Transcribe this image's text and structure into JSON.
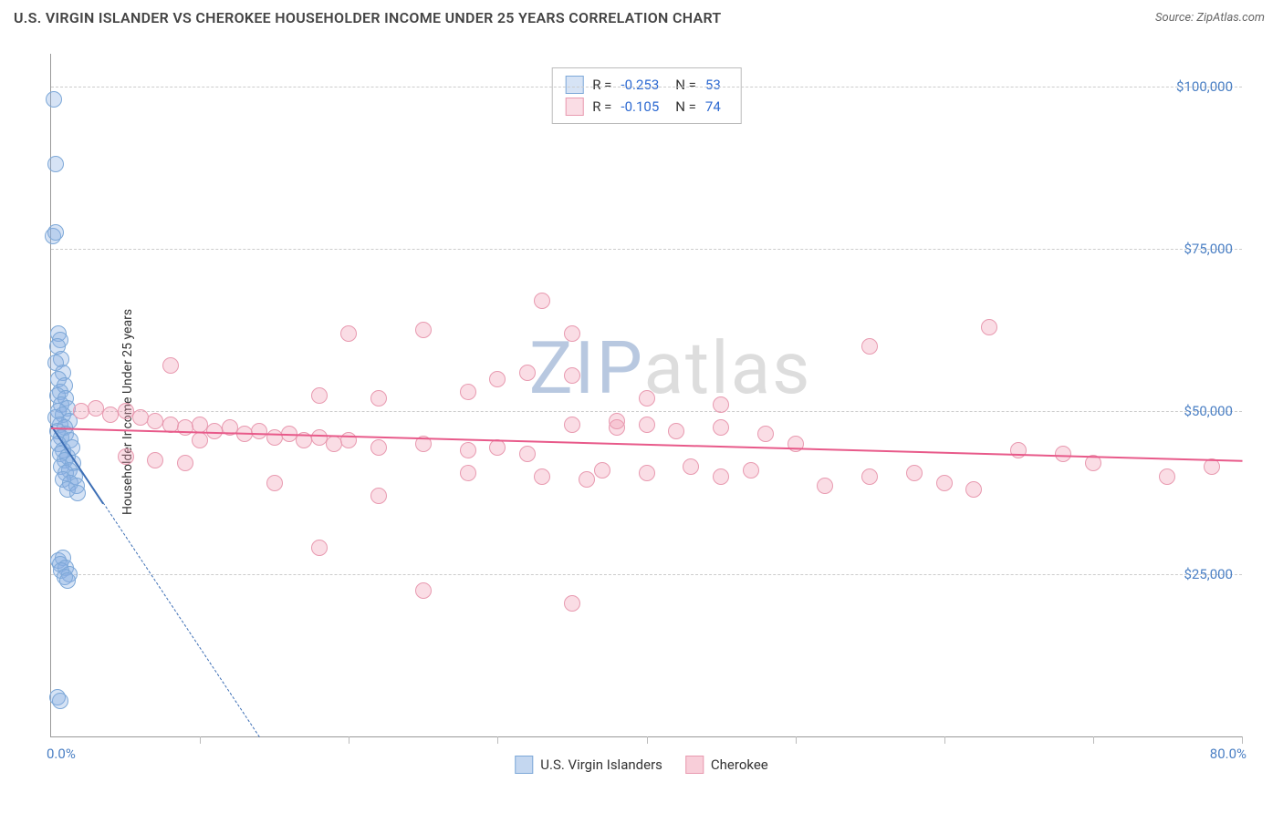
{
  "title": "U.S. VIRGIN ISLANDER VS CHEROKEE HOUSEHOLDER INCOME UNDER 25 YEARS CORRELATION CHART",
  "source": "Source: ZipAtlas.com",
  "watermark_zip": "ZIP",
  "watermark_atlas": "atlas",
  "watermark_color_zip": "#b8c8e0",
  "watermark_color_atlas": "#dddddd",
  "ylabel": "Householder Income Under 25 years",
  "xaxis": {
    "min": 0,
    "max": 80,
    "start_label": "0.0%",
    "end_label": "80.0%",
    "tick_positions": [
      0,
      10,
      20,
      30,
      40,
      50,
      60,
      70,
      80
    ]
  },
  "yaxis": {
    "min": 0,
    "max": 105000,
    "ticks": [
      {
        "val": 25000,
        "label": "$25,000"
      },
      {
        "val": 50000,
        "label": "$50,000"
      },
      {
        "val": 75000,
        "label": "$75,000"
      },
      {
        "val": 100000,
        "label": "$100,000"
      }
    ]
  },
  "series": [
    {
      "name": "U.S. Virgin Islanders",
      "fill": "rgba(137,176,225,0.35)",
      "stroke": "#7da8d8",
      "r_value": "-0.253",
      "n_value": "53",
      "trend": {
        "x1": 0,
        "y1": 48000,
        "x2": 3.5,
        "y2": 36000,
        "dash_to_y": 0,
        "color": "#3d6fb5"
      },
      "points": [
        [
          0.2,
          98000
        ],
        [
          0.3,
          88000
        ],
        [
          0.1,
          77000
        ],
        [
          0.3,
          77500
        ],
        [
          0.5,
          62000
        ],
        [
          0.6,
          61000
        ],
        [
          0.4,
          60000
        ],
        [
          0.7,
          58000
        ],
        [
          0.3,
          57500
        ],
        [
          0.8,
          56000
        ],
        [
          0.5,
          55000
        ],
        [
          0.9,
          54000
        ],
        [
          0.6,
          53000
        ],
        [
          0.4,
          52500
        ],
        [
          1.0,
          52000
        ],
        [
          0.7,
          51000
        ],
        [
          1.1,
          50500
        ],
        [
          0.5,
          50000
        ],
        [
          0.8,
          49500
        ],
        [
          0.3,
          49000
        ],
        [
          1.2,
          48500
        ],
        [
          0.6,
          48000
        ],
        [
          0.9,
          47500
        ],
        [
          0.4,
          47000
        ],
        [
          1.0,
          46500
        ],
        [
          0.7,
          46000
        ],
        [
          1.3,
          45500
        ],
        [
          0.5,
          45000
        ],
        [
          1.4,
          44500
        ],
        [
          0.8,
          44000
        ],
        [
          0.6,
          43500
        ],
        [
          1.1,
          43000
        ],
        [
          0.9,
          42500
        ],
        [
          1.5,
          42000
        ],
        [
          0.7,
          41500
        ],
        [
          1.2,
          41000
        ],
        [
          1.0,
          40500
        ],
        [
          1.6,
          40000
        ],
        [
          0.8,
          39500
        ],
        [
          1.3,
          39000
        ],
        [
          1.7,
          38500
        ],
        [
          1.1,
          38000
        ],
        [
          1.8,
          37500
        ],
        [
          0.5,
          27000
        ],
        [
          0.8,
          27500
        ],
        [
          0.6,
          26500
        ],
        [
          1.0,
          26000
        ],
        [
          0.7,
          25500
        ],
        [
          1.2,
          25000
        ],
        [
          0.9,
          24500
        ],
        [
          1.1,
          24000
        ],
        [
          0.4,
          6000
        ],
        [
          0.6,
          5500
        ]
      ]
    },
    {
      "name": "Cherokee",
      "fill": "rgba(242,158,180,0.35)",
      "stroke": "#e89ab0",
      "r_value": "-0.105",
      "n_value": "74",
      "trend": {
        "x1": 0,
        "y1": 47500,
        "x2": 80,
        "y2": 42500,
        "color": "#e85a8a"
      },
      "points": [
        [
          33,
          67000
        ],
        [
          20,
          62000
        ],
        [
          25,
          62500
        ],
        [
          35,
          62000
        ],
        [
          63,
          63000
        ],
        [
          55,
          60000
        ],
        [
          8,
          57000
        ],
        [
          30,
          55000
        ],
        [
          32,
          56000
        ],
        [
          35,
          55500
        ],
        [
          28,
          53000
        ],
        [
          22,
          52000
        ],
        [
          18,
          52500
        ],
        [
          40,
          52000
        ],
        [
          45,
          51000
        ],
        [
          2,
          50000
        ],
        [
          3,
          50500
        ],
        [
          4,
          49500
        ],
        [
          5,
          50000
        ],
        [
          6,
          49000
        ],
        [
          7,
          48500
        ],
        [
          8,
          48000
        ],
        [
          9,
          47500
        ],
        [
          10,
          48000
        ],
        [
          11,
          47000
        ],
        [
          12,
          47500
        ],
        [
          13,
          46500
        ],
        [
          14,
          47000
        ],
        [
          15,
          46000
        ],
        [
          16,
          46500
        ],
        [
          17,
          45500
        ],
        [
          18,
          46000
        ],
        [
          19,
          45000
        ],
        [
          20,
          45500
        ],
        [
          22,
          44500
        ],
        [
          25,
          45000
        ],
        [
          28,
          44000
        ],
        [
          30,
          44500
        ],
        [
          32,
          43500
        ],
        [
          35,
          48000
        ],
        [
          38,
          47500
        ],
        [
          40,
          48000
        ],
        [
          42,
          47000
        ],
        [
          45,
          47500
        ],
        [
          48,
          46500
        ],
        [
          37,
          41000
        ],
        [
          40,
          40500
        ],
        [
          43,
          41500
        ],
        [
          45,
          40000
        ],
        [
          47,
          41000
        ],
        [
          33,
          40000
        ],
        [
          36,
          39500
        ],
        [
          28,
          40500
        ],
        [
          5,
          43000
        ],
        [
          7,
          42500
        ],
        [
          9,
          42000
        ],
        [
          22,
          37000
        ],
        [
          18,
          29000
        ],
        [
          25,
          22500
        ],
        [
          35,
          20500
        ],
        [
          55,
          40000
        ],
        [
          58,
          40500
        ],
        [
          60,
          39000
        ],
        [
          62,
          38000
        ],
        [
          65,
          44000
        ],
        [
          68,
          43500
        ],
        [
          70,
          42000
        ],
        [
          75,
          40000
        ],
        [
          78,
          41500
        ],
        [
          50,
          45000
        ],
        [
          52,
          38500
        ],
        [
          15,
          39000
        ],
        [
          10,
          45500
        ],
        [
          38,
          48500
        ]
      ]
    }
  ],
  "legend": [
    {
      "label": "U.S. Virgin Islanders",
      "fill": "rgba(137,176,225,0.5)",
      "stroke": "#7da8d8"
    },
    {
      "label": "Cherokee",
      "fill": "rgba(242,158,180,0.5)",
      "stroke": "#e89ab0"
    }
  ]
}
